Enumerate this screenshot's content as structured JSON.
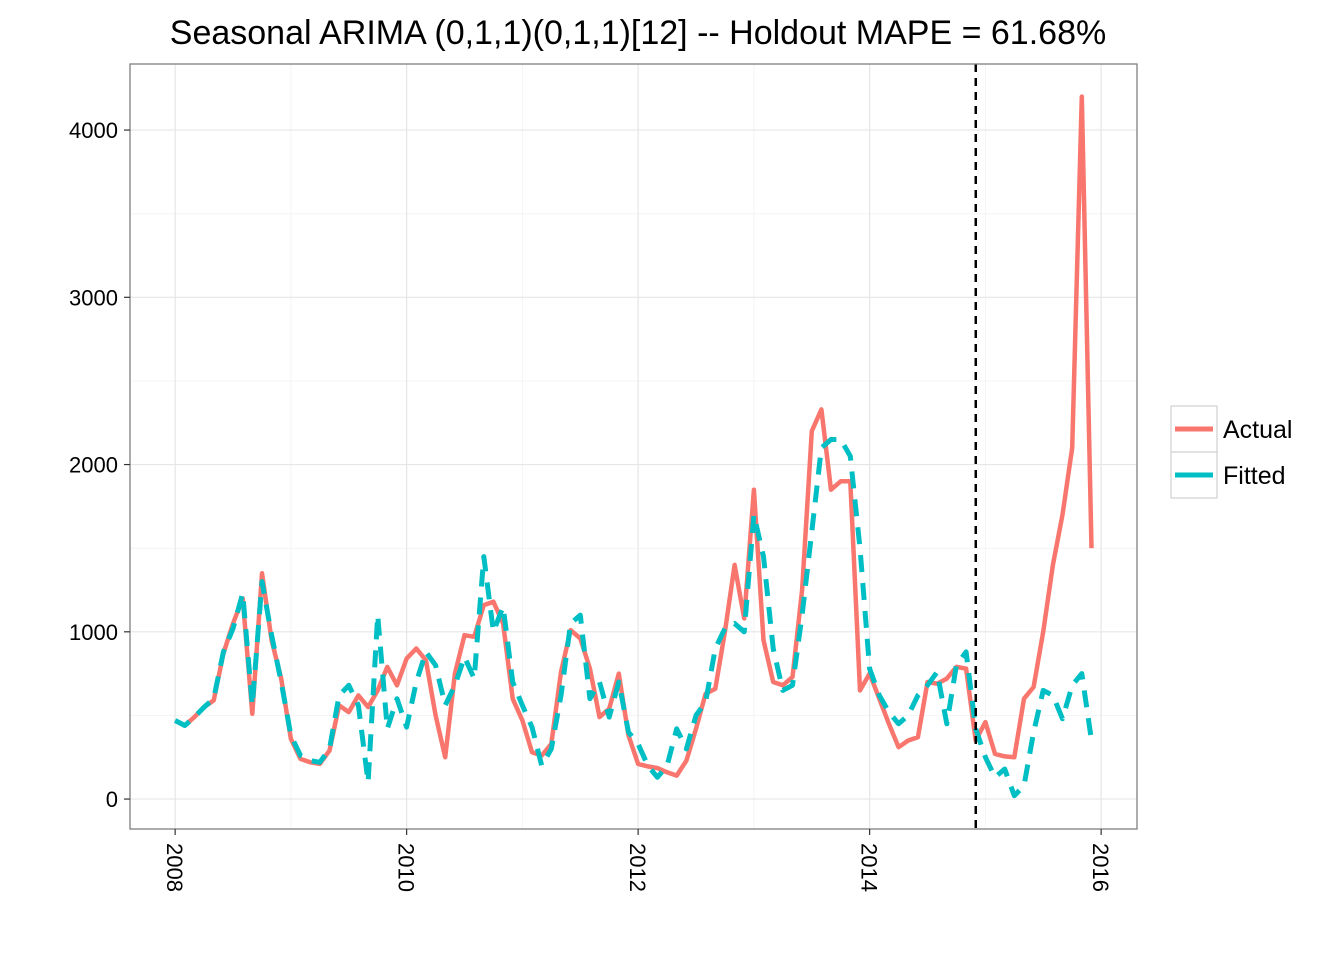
{
  "chart_data": {
    "type": "line",
    "title": "Seasonal ARIMA (0,1,1)(0,1,1)[12] -- Holdout MAPE = 61.68%",
    "xlabel": "",
    "ylabel": "",
    "start_year": 2008,
    "frequency": 12,
    "xlim": [
      2007.61,
      2016.31
    ],
    "ylim": [
      -179,
      4395
    ],
    "x_ticks": [
      2008,
      2010,
      2012,
      2014,
      2016
    ],
    "x_tick_labels": [
      "2008",
      "2010",
      "2012",
      "2014",
      "2016"
    ],
    "y_ticks": [
      0,
      1000,
      2000,
      3000,
      4000
    ],
    "y_tick_labels": [
      "0",
      "1000",
      "2000",
      "3000",
      "4000"
    ],
    "grid": true,
    "legend_position": "right",
    "holdout_start": 2014.917,
    "series": [
      {
        "name": "Actual",
        "color": "#F8766D",
        "style": "solid",
        "values": [
          470,
          440,
          490,
          550,
          590,
          870,
          1050,
          1200,
          510,
          1350,
          950,
          720,
          360,
          240,
          220,
          210,
          290,
          560,
          520,
          620,
          550,
          650,
          790,
          680,
          840,
          900,
          830,
          500,
          250,
          750,
          980,
          970,
          1160,
          1180,
          1050,
          600,
          470,
          280,
          260,
          330,
          760,
          1010,
          960,
          780,
          490,
          540,
          750,
          380,
          210,
          195,
          185,
          160,
          140,
          230,
          420,
          630,
          660,
          1000,
          1400,
          1080,
          1850,
          950,
          700,
          680,
          730,
          1250,
          2200,
          2330,
          1850,
          1900,
          1900,
          650,
          750,
          600,
          450,
          310,
          350,
          370,
          700,
          690,
          720,
          790,
          780,
          350,
          460,
          270,
          255,
          250,
          600,
          670,
          1000,
          1400,
          1700,
          2100,
          4200,
          1500
        ]
      },
      {
        "name": "Fitted",
        "color": "#00BFC4",
        "style": "dashed",
        "values": [
          470,
          440,
          490,
          550,
          600,
          880,
          1020,
          1230,
          560,
          1300,
          980,
          700,
          380,
          260,
          230,
          220,
          300,
          620,
          680,
          560,
          100,
          1100,
          420,
          600,
          430,
          700,
          880,
          800,
          560,
          680,
          850,
          720,
          1450,
          1000,
          1150,
          700,
          560,
          430,
          200,
          300,
          620,
          1050,
          1100,
          600,
          700,
          490,
          700,
          400,
          330,
          200,
          130,
          200,
          420,
          300,
          500,
          580,
          900,
          1020,
          1050,
          1000,
          1700,
          1450,
          900,
          650,
          680,
          1100,
          1600,
          2100,
          2150,
          2150,
          2050,
          1500,
          780,
          620,
          520,
          450,
          500,
          620,
          680,
          760,
          450,
          800,
          880,
          420,
          250,
          130,
          180,
          20,
          80,
          400,
          650,
          620,
          480,
          680,
          750,
          350
        ]
      }
    ]
  }
}
